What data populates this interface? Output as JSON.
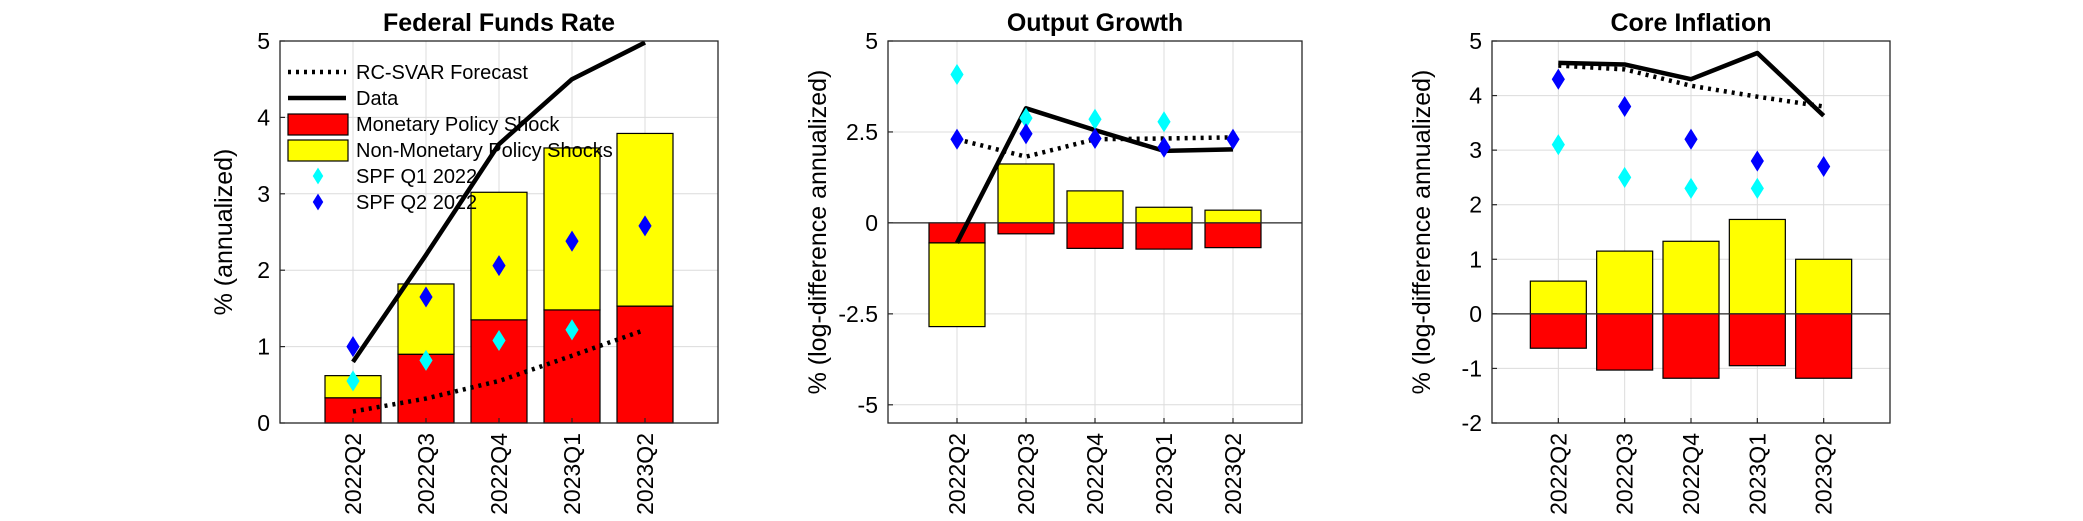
{
  "chart_data": [
    {
      "type": "bar",
      "title": "Federal Funds Rate",
      "ylabel": "% (annualized)",
      "xlabel": "",
      "categories": [
        "2022Q2",
        "2022Q3",
        "2022Q4",
        "2023Q1",
        "2023Q2"
      ],
      "ylim": [
        0,
        5
      ],
      "yticks": [
        "0",
        "1",
        "2",
        "3",
        "4",
        "5"
      ],
      "grid": true,
      "legend_placement": "top-left",
      "stacked_bars": [
        {
          "name": "Monetary Policy Shock",
          "color": "#ff0000",
          "values": [
            0.33,
            0.9,
            1.35,
            1.48,
            1.53
          ]
        },
        {
          "name": "Non-Monetary Policy Shocks",
          "color": "#ffff00",
          "values": [
            0.29,
            0.92,
            1.67,
            2.12,
            2.26
          ]
        }
      ],
      "lines": [
        {
          "name": "RC-SVAR Forecast",
          "style": "dotted",
          "color": "#000000",
          "values": [
            0.15,
            0.32,
            0.55,
            0.88,
            1.22
          ]
        },
        {
          "name": "Data",
          "style": "solid",
          "color": "#000000",
          "values": [
            0.8,
            2.2,
            3.65,
            4.5,
            4.98
          ]
        }
      ],
      "markers": [
        {
          "name": "SPF Q1 2022",
          "color": "#00ffff",
          "values": [
            0.55,
            0.82,
            1.08,
            1.22,
            null
          ]
        },
        {
          "name": "SPF Q2 2022",
          "color": "#0000ff",
          "values": [
            1.0,
            1.65,
            2.06,
            2.38,
            2.58
          ]
        }
      ]
    },
    {
      "type": "bar",
      "title": "Output Growth",
      "ylabel": "% (log-difference annualized)",
      "xlabel": "",
      "categories": [
        "2022Q2",
        "2022Q3",
        "2022Q4",
        "2023Q1",
        "2023Q2"
      ],
      "ylim": [
        -5.5,
        5
      ],
      "yticks": [
        "-5",
        "-2.5",
        "0",
        "2.5",
        "5"
      ],
      "ytick_values": [
        -5,
        -2.5,
        0,
        2.5,
        5
      ],
      "grid": true,
      "stacked_bars": [
        {
          "name": "Monetary Policy Shock",
          "color": "#ff0000",
          "values": [
            -0.55,
            -0.3,
            -0.7,
            -0.72,
            -0.68
          ]
        },
        {
          "name": "Non-Monetary Policy Shocks",
          "color": "#ffff00",
          "values": [
            -2.3,
            1.62,
            0.88,
            0.43,
            0.35
          ]
        }
      ],
      "lines": [
        {
          "name": "RC-SVAR Forecast",
          "style": "dotted",
          "color": "#000000",
          "values": [
            2.3,
            1.82,
            2.3,
            2.32,
            2.35
          ]
        },
        {
          "name": "Data",
          "style": "solid",
          "color": "#000000",
          "values": [
            -0.55,
            3.15,
            2.55,
            1.98,
            2.02
          ]
        }
      ],
      "markers": [
        {
          "name": "SPF Q1 2022",
          "color": "#00ffff",
          "values": [
            4.08,
            2.88,
            2.85,
            2.78,
            null
          ]
        },
        {
          "name": "SPF Q2 2022",
          "color": "#0000ff",
          "values": [
            2.3,
            2.45,
            2.32,
            2.08,
            2.3
          ]
        }
      ]
    },
    {
      "type": "bar",
      "title": "Core Inflation",
      "ylabel": "% (log-difference annualized)",
      "xlabel": "",
      "categories": [
        "2022Q2",
        "2022Q3",
        "2022Q4",
        "2023Q1",
        "2023Q2"
      ],
      "ylim": [
        -2,
        5
      ],
      "yticks": [
        "-2",
        "-1",
        "0",
        "1",
        "2",
        "3",
        "4",
        "5"
      ],
      "grid": true,
      "stacked_bars": [
        {
          "name": "Monetary Policy Shock",
          "color": "#ff0000",
          "values": [
            -0.63,
            -1.03,
            -1.18,
            -0.95,
            -1.18
          ]
        },
        {
          "name": "Non-Monetary Policy Shocks",
          "color": "#ffff00",
          "values": [
            0.6,
            1.15,
            1.33,
            1.73,
            1.0
          ]
        }
      ],
      "lines": [
        {
          "name": "RC-SVAR Forecast",
          "style": "dotted",
          "color": "#000000",
          "values": [
            4.55,
            4.48,
            4.18,
            3.98,
            3.8
          ]
        },
        {
          "name": "Data",
          "style": "solid",
          "color": "#000000",
          "values": [
            4.6,
            4.57,
            4.3,
            4.78,
            3.63
          ]
        }
      ],
      "markers": [
        {
          "name": "SPF Q1 2022",
          "color": "#00ffff",
          "values": [
            3.1,
            2.5,
            2.3,
            2.3,
            null
          ]
        },
        {
          "name": "SPF Q2 2022",
          "color": "#0000ff",
          "values": [
            4.3,
            3.8,
            3.2,
            2.8,
            2.7
          ]
        }
      ]
    }
  ],
  "legend": {
    "items": [
      {
        "label": "RC-SVAR Forecast",
        "kind": "dotted-line"
      },
      {
        "label": "Data",
        "kind": "solid-line"
      },
      {
        "label": "Monetary Policy Shock",
        "kind": "patch",
        "color": "#ff0000"
      },
      {
        "label": "Non-Monetary Policy Shocks",
        "kind": "patch",
        "color": "#ffff00"
      },
      {
        "label": "SPF Q1 2022",
        "kind": "diamond",
        "color": "#00ffff"
      },
      {
        "label": "SPF Q2 2022",
        "kind": "diamond",
        "color": "#0000ff"
      }
    ]
  }
}
